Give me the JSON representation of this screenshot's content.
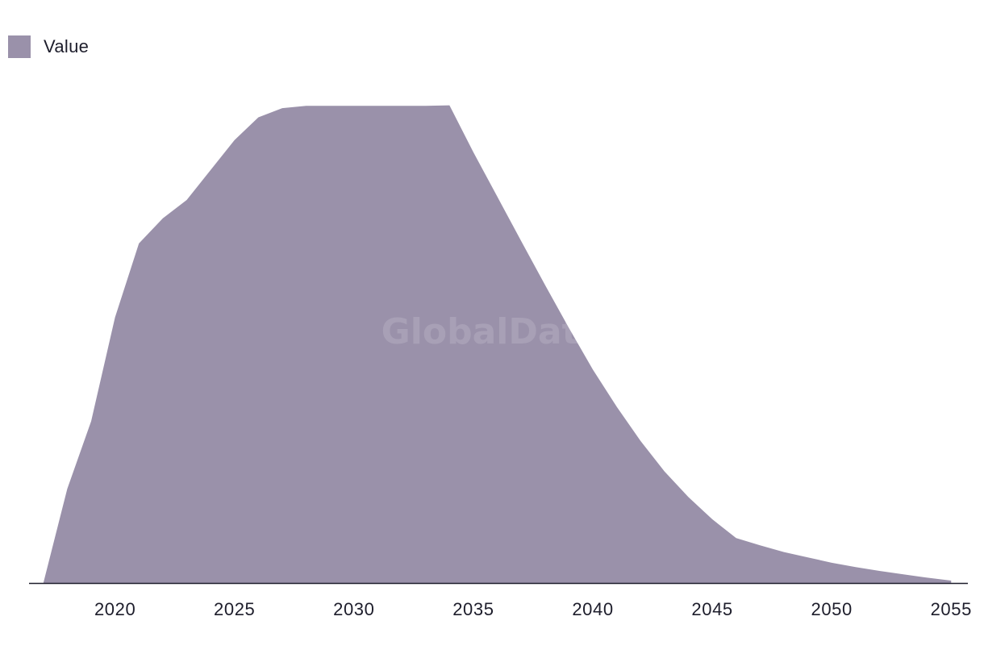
{
  "legend": {
    "label": "Value",
    "color": "#9a91aa"
  },
  "watermark": "GlobalData",
  "chart_data": {
    "type": "area",
    "title": "",
    "xlabel": "",
    "ylabel": "",
    "x_ticks": [
      "2020",
      "2025",
      "2030",
      "2035",
      "2040",
      "2045",
      "2050",
      "2055"
    ],
    "xlim": [
      2016.4,
      2055.7
    ],
    "ylim": [
      0,
      100
    ],
    "grid": false,
    "legend_position": "top-left",
    "series": [
      {
        "name": "Value",
        "color": "#9a91aa",
        "x": [
          2017,
          2018,
          2019,
          2020,
          2021,
          2022,
          2023,
          2024,
          2025,
          2026,
          2027,
          2028,
          2029,
          2030,
          2031,
          2032,
          2033,
          2034,
          2035,
          2036,
          2037,
          2038,
          2039,
          2040,
          2041,
          2042,
          2043,
          2044,
          2045,
          2046,
          2047,
          2048,
          2049,
          2050,
          2051,
          2052,
          2053,
          2054,
          2055
        ],
        "values": [
          0,
          19.5,
          33.5,
          55,
          70.3,
          75.5,
          79.3,
          85.5,
          91.7,
          96.4,
          98.3,
          98.8,
          98.8,
          98.8,
          98.8,
          98.8,
          98.8,
          98.9,
          89.2,
          80,
          70.8,
          61.7,
          52.8,
          44.2,
          36.5,
          29.4,
          23.1,
          17.8,
          13.2,
          9.3,
          7.8,
          6.4,
          5.3,
          4.2,
          3.3,
          2.5,
          1.8,
          1.1,
          0.5
        ]
      }
    ]
  }
}
